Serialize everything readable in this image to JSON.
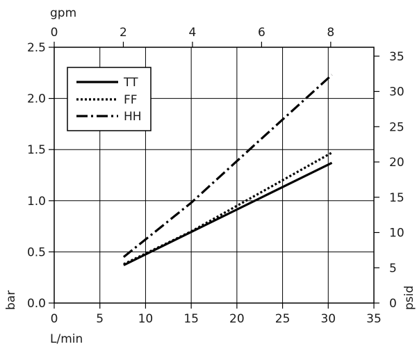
{
  "chart_data": {
    "type": "line",
    "title": "",
    "grid": true,
    "legend_position": "top-left",
    "axes": {
      "x_bottom": {
        "label": "L/min",
        "range": [
          0,
          35
        ],
        "ticks": [
          0,
          5,
          10,
          15,
          20,
          25,
          30,
          35
        ]
      },
      "x_top": {
        "label": "gpm",
        "range": [
          0,
          9.25
        ],
        "ticks": [
          0,
          2,
          4,
          6,
          8
        ]
      },
      "y_left": {
        "label": "bar",
        "range": [
          0,
          2.5
        ],
        "ticks": [
          "0.0",
          "0.5",
          "1.0",
          "1.5",
          "2.0",
          "2.5"
        ]
      },
      "y_right": {
        "label": "psid",
        "range": [
          0,
          36.26
        ],
        "ticks": [
          0,
          5,
          10,
          15,
          20,
          25,
          30,
          35
        ]
      }
    },
    "series": [
      {
        "name": "TT",
        "style": "solid",
        "points": [
          [
            7.6,
            0.37
          ],
          [
            30.4,
            1.37
          ]
        ]
      },
      {
        "name": "FF",
        "style": "dotted",
        "points": [
          [
            7.6,
            0.38
          ],
          [
            15.0,
            0.7
          ],
          [
            30.4,
            1.47
          ]
        ]
      },
      {
        "name": "HH",
        "style": "dashdot",
        "points": [
          [
            7.6,
            0.45
          ],
          [
            15.0,
            0.98
          ],
          [
            22.0,
            1.55
          ],
          [
            30.4,
            2.23
          ]
        ]
      }
    ]
  }
}
